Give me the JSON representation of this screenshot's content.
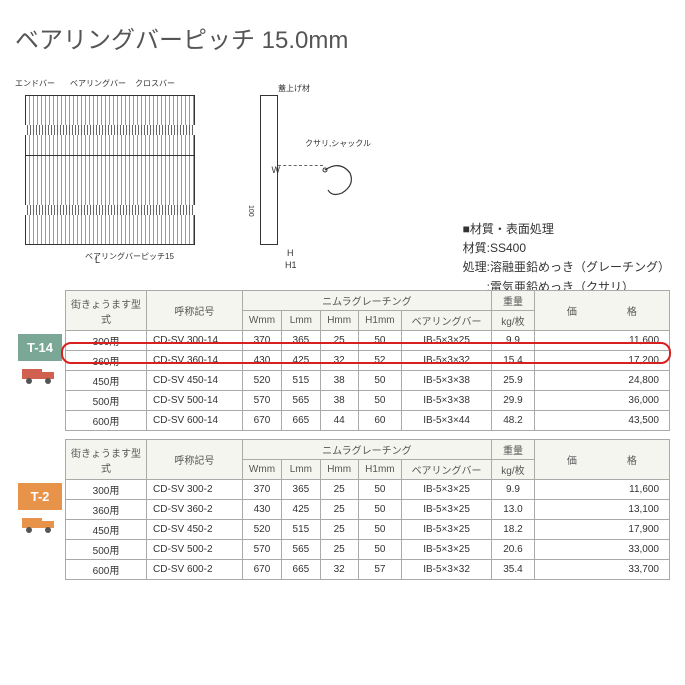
{
  "title": "ベアリングバーピッチ 15.0mm",
  "diagram": {
    "labels": {
      "endbar": "エンドバー",
      "bearingbar": "ベアリングバー",
      "crossbar": "クロスバー",
      "lip": "蓋上げ材",
      "bracket": "クサリ,シャックル",
      "pitch": "ベアリングバーピッチ15",
      "L": "L",
      "W": "W",
      "H": "H",
      "H1": "H1",
      "d100": "100"
    }
  },
  "material": {
    "header": "■材質・表面処理",
    "line1": "材質:SS400",
    "line2": "処理:溶融亜鉛めっき（グレーチング）",
    "line3": "　　:電気亜鉛めっき（クサリ）"
  },
  "tableHeaders": {
    "machiType": "街きょうます型式",
    "code": "呼称記号",
    "nimura": "ニムラグレーチング",
    "Wmm": "Wmm",
    "Lmm": "Lmm",
    "Hmm": "Hmm",
    "H1mm": "H1mm",
    "bearing": "ベアリングバー",
    "weight": "重量",
    "weightUnit": "kg/枚",
    "price": "価　　　　　格"
  },
  "tables": [
    {
      "typeLabel": "T-14",
      "typeClass": "type-14",
      "truckColor": "#d06050",
      "highlightRow": 1,
      "rows": [
        {
          "type": "300用",
          "code": "CD-SV 300-14",
          "W": "370",
          "L": "365",
          "H": "25",
          "H1": "50",
          "bar": "IB-5×3×25",
          "wt": "9.9",
          "price": "11,600"
        },
        {
          "type": "360用",
          "code": "CD-SV 360-14",
          "W": "430",
          "L": "425",
          "H": "32",
          "H1": "52",
          "bar": "IB-5×3×32",
          "wt": "15.4",
          "price": "17,200"
        },
        {
          "type": "450用",
          "code": "CD-SV 450-14",
          "W": "520",
          "L": "515",
          "H": "38",
          "H1": "50",
          "bar": "IB-5×3×38",
          "wt": "25.9",
          "price": "24,800"
        },
        {
          "type": "500用",
          "code": "CD-SV 500-14",
          "W": "570",
          "L": "565",
          "H": "38",
          "H1": "50",
          "bar": "IB-5×3×38",
          "wt": "29.9",
          "price": "36,000"
        },
        {
          "type": "600用",
          "code": "CD-SV 600-14",
          "W": "670",
          "L": "665",
          "H": "44",
          "H1": "60",
          "bar": "IB-5×3×44",
          "wt": "48.2",
          "price": "43,500"
        }
      ]
    },
    {
      "typeLabel": "T-2",
      "typeClass": "type-2",
      "truckColor": "#e8934a",
      "highlightRow": -1,
      "rows": [
        {
          "type": "300用",
          "code": "CD-SV 300-2",
          "W": "370",
          "L": "365",
          "H": "25",
          "H1": "50",
          "bar": "IB-5×3×25",
          "wt": "9.9",
          "price": "11,600"
        },
        {
          "type": "360用",
          "code": "CD-SV 360-2",
          "W": "430",
          "L": "425",
          "H": "25",
          "H1": "50",
          "bar": "IB-5×3×25",
          "wt": "13.0",
          "price": "13,100"
        },
        {
          "type": "450用",
          "code": "CD-SV 450-2",
          "W": "520",
          "L": "515",
          "H": "25",
          "H1": "50",
          "bar": "IB-5×3×25",
          "wt": "18.2",
          "price": "17,900"
        },
        {
          "type": "500用",
          "code": "CD-SV 500-2",
          "W": "570",
          "L": "565",
          "H": "25",
          "H1": "50",
          "bar": "IB-5×3×25",
          "wt": "20.6",
          "price": "33,000"
        },
        {
          "type": "600用",
          "code": "CD-SV 600-2",
          "W": "670",
          "L": "665",
          "H": "32",
          "H1": "57",
          "bar": "IB-5×3×32",
          "wt": "35.4",
          "price": "33,700"
        }
      ]
    }
  ],
  "colors": {
    "highlight": "#d92020",
    "t14": "#7ba896",
    "t2": "#e8934a",
    "border": "#aaaaaa",
    "headerBg": "#f5f5f0"
  }
}
